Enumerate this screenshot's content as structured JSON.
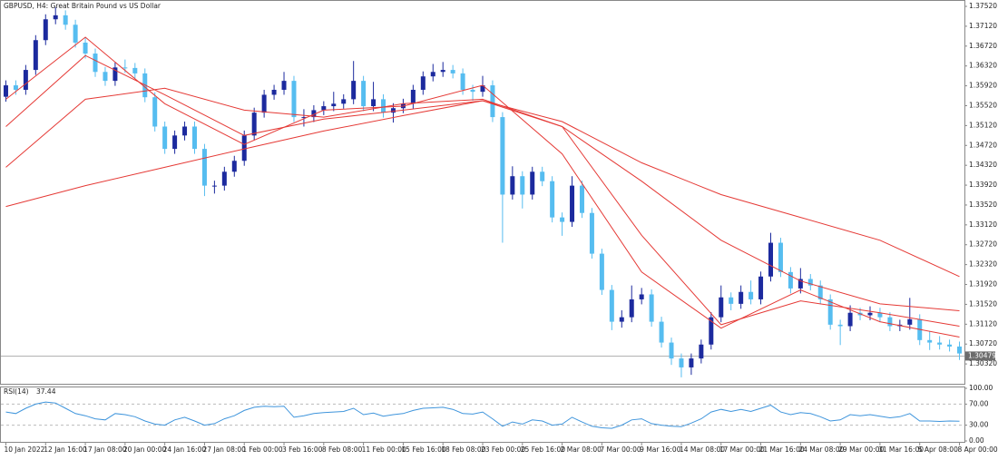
{
  "chart_data": {
    "type": "candlestick",
    "title": "GBPUSD, H4:  Great Britain Pound vs US Dollar",
    "categories": [
      "10 Jan 2022",
      null,
      null,
      null,
      "12 Jan 16:00",
      null,
      null,
      null,
      "17 Jan 08:00",
      null,
      null,
      null,
      "20 Jan 00:00",
      null,
      null,
      null,
      "24 Jan 16:00",
      null,
      null,
      null,
      "27 Jan 08:00",
      null,
      null,
      null,
      "1 Feb 00:00",
      null,
      null,
      null,
      "3 Feb 16:00",
      null,
      null,
      null,
      "8 Feb 08:00",
      null,
      null,
      null,
      "11 Feb 00:00",
      null,
      null,
      null,
      "15 Feb 16:00",
      null,
      null,
      null,
      "18 Feb 08:00",
      null,
      null,
      null,
      "23 Feb 00:00",
      null,
      null,
      null,
      "25 Feb 16:00",
      null,
      null,
      null,
      "2 Mar 08:00",
      null,
      null,
      null,
      "7 Mar 00:00",
      null,
      null,
      null,
      "9 Mar 16:00",
      null,
      null,
      null,
      "14 Mar 08:00",
      null,
      null,
      null,
      "17 Mar 00:00",
      null,
      null,
      null,
      "21 Mar 16:00",
      null,
      null,
      null,
      "24 Mar 08:00",
      null,
      null,
      null,
      "29 Mar 00:00",
      null,
      null,
      null,
      "31 Mar 16:00",
      null,
      null,
      null,
      "5 Apr 08:00",
      null,
      null,
      null,
      "8 Apr 00:00"
    ],
    "ohlc": [
      [
        1.357,
        1.3603,
        1.356,
        1.3593
      ],
      [
        1.3593,
        1.3603,
        1.3574,
        1.3584
      ],
      [
        1.3584,
        1.3634,
        1.3574,
        1.3624
      ],
      [
        1.3624,
        1.3694,
        1.3614,
        1.3684
      ],
      [
        1.3684,
        1.3736,
        1.3674,
        1.3726
      ],
      [
        1.3726,
        1.375,
        1.3716,
        1.3734
      ],
      [
        1.3734,
        1.3744,
        1.3705,
        1.3715
      ],
      [
        1.3715,
        1.3725,
        1.3669,
        1.3679
      ],
      [
        1.3679,
        1.3689,
        1.3647,
        1.3657
      ],
      [
        1.3657,
        1.3667,
        1.361,
        1.362
      ],
      [
        1.362,
        1.363,
        1.3592,
        1.3602
      ],
      [
        1.3602,
        1.3639,
        1.3592,
        1.3629
      ],
      [
        1.3629,
        1.3645,
        1.3618,
        1.3628
      ],
      [
        1.3628,
        1.3638,
        1.3607,
        1.3617
      ],
      [
        1.3617,
        1.3627,
        1.3559,
        1.3569
      ],
      [
        1.3569,
        1.3579,
        1.35,
        1.351
      ],
      [
        1.351,
        1.352,
        1.3455,
        1.3465
      ],
      [
        1.3465,
        1.3502,
        1.3455,
        1.3492
      ],
      [
        1.3492,
        1.352,
        1.3482,
        1.351
      ],
      [
        1.351,
        1.352,
        1.3455,
        1.3465
      ],
      [
        1.3465,
        1.3475,
        1.337,
        1.3391
      ],
      [
        1.3391,
        1.3401,
        1.3375,
        1.3391
      ],
      [
        1.3391,
        1.3429,
        1.3381,
        1.3419
      ],
      [
        1.3419,
        1.3451,
        1.3409,
        1.3441
      ],
      [
        1.3441,
        1.3502,
        1.3431,
        1.3492
      ],
      [
        1.3492,
        1.3548,
        1.3482,
        1.3538
      ],
      [
        1.3538,
        1.3584,
        1.3528,
        1.3574
      ],
      [
        1.3574,
        1.3594,
        1.3564,
        1.3584
      ],
      [
        1.3584,
        1.362,
        1.3574,
        1.3602
      ],
      [
        1.3602,
        1.3612,
        1.3519,
        1.3529
      ],
      [
        1.3529,
        1.3545,
        1.351,
        1.3529
      ],
      [
        1.3529,
        1.3553,
        1.3519,
        1.3543
      ],
      [
        1.3543,
        1.3561,
        1.3533,
        1.3551
      ],
      [
        1.3551,
        1.358,
        1.3541,
        1.3556
      ],
      [
        1.3556,
        1.3575,
        1.3546,
        1.3565
      ],
      [
        1.3565,
        1.3642,
        1.3555,
        1.3602
      ],
      [
        1.3602,
        1.3612,
        1.3541,
        1.3551
      ],
      [
        1.3551,
        1.36,
        1.3541,
        1.3565
      ],
      [
        1.3565,
        1.3575,
        1.3528,
        1.3538
      ],
      [
        1.3538,
        1.3557,
        1.3518,
        1.3547
      ],
      [
        1.3547,
        1.3566,
        1.3537,
        1.3556
      ],
      [
        1.3556,
        1.3594,
        1.3546,
        1.3584
      ],
      [
        1.3584,
        1.3621,
        1.3574,
        1.3611
      ],
      [
        1.3611,
        1.3636,
        1.3601,
        1.362
      ],
      [
        1.362,
        1.364,
        1.361,
        1.3624
      ],
      [
        1.3624,
        1.3634,
        1.3607,
        1.3617
      ],
      [
        1.3617,
        1.3627,
        1.3574,
        1.3584
      ],
      [
        1.3584,
        1.3594,
        1.3562,
        1.358
      ],
      [
        1.358,
        1.3612,
        1.357,
        1.3593
      ],
      [
        1.3593,
        1.3603,
        1.3519,
        1.3529
      ],
      [
        1.3529,
        1.3539,
        1.3276,
        1.3373
      ],
      [
        1.3373,
        1.343,
        1.3363,
        1.341
      ],
      [
        1.341,
        1.342,
        1.3345,
        1.3373
      ],
      [
        1.3373,
        1.3429,
        1.3363,
        1.3419
      ],
      [
        1.3419,
        1.3429,
        1.339,
        1.34
      ],
      [
        1.34,
        1.341,
        1.3317,
        1.3327
      ],
      [
        1.3327,
        1.3337,
        1.329,
        1.3318
      ],
      [
        1.3318,
        1.341,
        1.3308,
        1.3391
      ],
      [
        1.3391,
        1.3401,
        1.3326,
        1.3336
      ],
      [
        1.3336,
        1.3346,
        1.3244,
        1.3254
      ],
      [
        1.3254,
        1.3264,
        1.3171,
        1.3181
      ],
      [
        1.3181,
        1.3191,
        1.31,
        1.3117
      ],
      [
        1.3117,
        1.314,
        1.3105,
        1.3126
      ],
      [
        1.3126,
        1.319,
        1.3116,
        1.3162
      ],
      [
        1.3162,
        1.3185,
        1.3152,
        1.3172
      ],
      [
        1.3172,
        1.3182,
        1.3107,
        1.3117
      ],
      [
        1.3117,
        1.3127,
        1.3065,
        1.3075
      ],
      [
        1.3075,
        1.3085,
        1.303,
        1.3043
      ],
      [
        1.3043,
        1.3053,
        1.3005,
        1.3025
      ],
      [
        1.3025,
        1.3053,
        1.301,
        1.3043
      ],
      [
        1.3043,
        1.3081,
        1.3033,
        1.3071
      ],
      [
        1.3071,
        1.3136,
        1.3061,
        1.3126
      ],
      [
        1.3126,
        1.319,
        1.3116,
        1.3166
      ],
      [
        1.3166,
        1.3176,
        1.314,
        1.3153
      ],
      [
        1.3153,
        1.319,
        1.3143,
        1.3177
      ],
      [
        1.3177,
        1.32,
        1.3152,
        1.3162
      ],
      [
        1.3162,
        1.3218,
        1.3152,
        1.3208
      ],
      [
        1.3208,
        1.3296,
        1.3198,
        1.3276
      ],
      [
        1.3276,
        1.3286,
        1.3207,
        1.3217
      ],
      [
        1.3217,
        1.3227,
        1.3174,
        1.3184
      ],
      [
        1.3184,
        1.3225,
        1.3174,
        1.3203
      ],
      [
        1.3203,
        1.3213,
        1.318,
        1.319
      ],
      [
        1.319,
        1.32,
        1.3152,
        1.3162
      ],
      [
        1.3162,
        1.3172,
        1.3101,
        1.3111
      ],
      [
        1.3111,
        1.3121,
        1.307,
        1.3108
      ],
      [
        1.3108,
        1.315,
        1.3098,
        1.3135
      ],
      [
        1.3135,
        1.3145,
        1.312,
        1.313
      ],
      [
        1.313,
        1.3148,
        1.312,
        1.3135
      ],
      [
        1.3135,
        1.3145,
        1.3116,
        1.3126
      ],
      [
        1.3126,
        1.3136,
        1.3098,
        1.3108
      ],
      [
        1.3108,
        1.3121,
        1.3098,
        1.3111
      ],
      [
        1.3111,
        1.3165,
        1.3101,
        1.3122
      ],
      [
        1.3122,
        1.3132,
        1.307,
        1.308
      ],
      [
        1.308,
        1.3098,
        1.306,
        1.3075
      ],
      [
        1.3075,
        1.3088,
        1.3061,
        1.3071
      ],
      [
        1.3071,
        1.3081,
        1.3057,
        1.3067
      ],
      [
        1.3067,
        1.3077,
        1.304,
        1.3053
      ]
    ],
    "up_color": "#1c2a9e",
    "down_color": "#56bdf0",
    "ylim": [
      1.2992,
      1.3763
    ],
    "yticks": [
      {
        "value": 1.3752,
        "label": "1.37520"
      },
      {
        "value": 1.3712,
        "label": "1.37120"
      },
      {
        "value": 1.3672,
        "label": "1.36720"
      },
      {
        "value": 1.3632,
        "label": "1.36320"
      },
      {
        "value": 1.3592,
        "label": "1.35920"
      },
      {
        "value": 1.3552,
        "label": "1.35520"
      },
      {
        "value": 1.3512,
        "label": "1.35120"
      },
      {
        "value": 1.3472,
        "label": "1.34720"
      },
      {
        "value": 1.3432,
        "label": "1.34320"
      },
      {
        "value": 1.3392,
        "label": "1.33920"
      },
      {
        "value": 1.3352,
        "label": "1.33520"
      },
      {
        "value": 1.3312,
        "label": "1.33120"
      },
      {
        "value": 1.3272,
        "label": "1.32720"
      },
      {
        "value": 1.3232,
        "label": "1.32320"
      },
      {
        "value": 1.3192,
        "label": "1.31920"
      },
      {
        "value": 1.3152,
        "label": "1.31520"
      },
      {
        "value": 1.3112,
        "label": "1.31120"
      },
      {
        "value": 1.3072,
        "label": "1.30720"
      },
      {
        "value": 1.3032,
        "label": "1.30320"
      }
    ],
    "bid": 1.30479,
    "ma": [
      {
        "color": "#e53935",
        "x": [
          0,
          8,
          16,
          24,
          32,
          40,
          48,
          56,
          64,
          72,
          80,
          88,
          96
        ],
        "values": [
          1.3565,
          1.369,
          1.3556,
          1.3474,
          1.3543,
          1.3551,
          1.3593,
          1.3455,
          1.3217,
          1.3104,
          1.3181,
          1.3117,
          1.3086
        ]
      },
      {
        "color": "#e53935",
        "x": [
          0,
          8,
          16,
          24,
          32,
          40,
          48,
          56,
          64,
          72,
          80,
          88,
          96
        ],
        "values": [
          1.351,
          1.3653,
          1.3574,
          1.3492,
          1.3525,
          1.3543,
          1.3562,
          1.351,
          1.3291,
          1.3111,
          1.3159,
          1.3135,
          1.3108
        ]
      },
      {
        "color": "#e53935",
        "x": [
          0,
          8,
          16,
          24,
          32,
          40,
          48,
          56,
          64,
          72,
          80,
          88,
          96
        ],
        "values": [
          1.3428,
          1.3565,
          1.3587,
          1.3543,
          1.3529,
          1.3556,
          1.3565,
          1.351,
          1.34,
          1.3281,
          1.3199,
          1.3153,
          1.3139
        ]
      },
      {
        "color": "#e53935",
        "x": [
          0,
          8,
          16,
          24,
          32,
          40,
          48,
          56,
          64,
          72,
          80,
          88,
          96
        ],
        "values": [
          1.3349,
          1.3391,
          1.3428,
          1.3465,
          1.3501,
          1.3532,
          1.3562,
          1.352,
          1.3437,
          1.3373,
          1.3327,
          1.3281,
          1.3208
        ]
      }
    ],
    "rsi": {
      "label": "RSI(14)",
      "color": "#3f95dc",
      "ylim": [
        0,
        100
      ],
      "yticks": [
        {
          "value": 100,
          "label": "100.00"
        },
        {
          "value": 70,
          "label": "70.00"
        },
        {
          "value": 30,
          "label": "30.00"
        },
        {
          "value": 0,
          "label": "0.00"
        }
      ],
      "values": [
        55,
        52,
        62,
        70,
        74,
        72,
        62,
        52,
        48,
        42,
        40,
        52,
        50,
        46,
        38,
        32,
        30,
        40,
        45,
        38,
        30,
        33,
        42,
        48,
        58,
        64,
        66,
        65,
        66,
        45,
        48,
        52,
        54,
        55,
        56,
        62,
        50,
        53,
        47,
        50,
        52,
        58,
        62,
        63,
        64,
        60,
        52,
        51,
        55,
        42,
        28,
        36,
        32,
        40,
        38,
        30,
        32,
        45,
        36,
        28,
        25,
        24,
        30,
        40,
        42,
        33,
        30,
        28,
        27,
        34,
        42,
        55,
        60,
        56,
        60,
        56,
        62,
        68,
        55,
        50,
        54,
        52,
        46,
        38,
        40,
        50,
        48,
        50,
        47,
        44,
        46,
        52,
        38,
        38,
        37,
        38,
        37.44
      ]
    }
  }
}
